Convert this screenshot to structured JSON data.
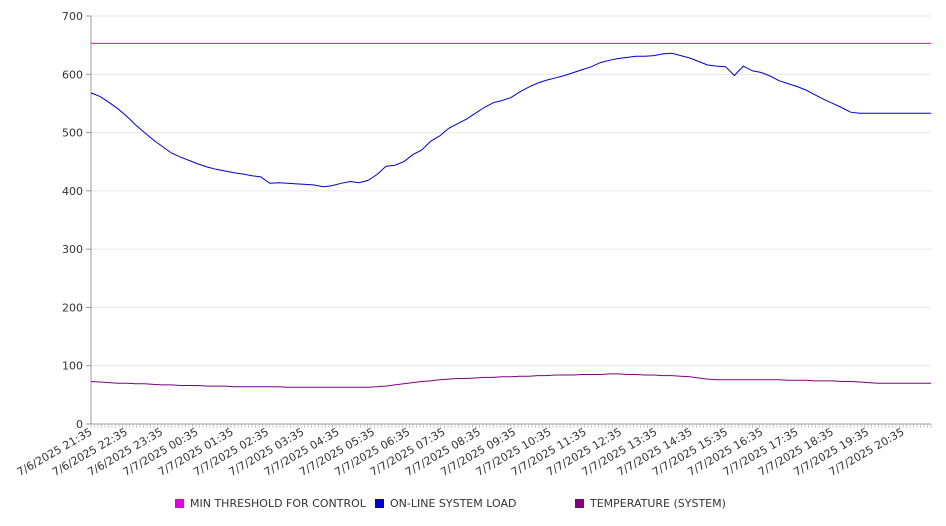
{
  "chart_data": {
    "type": "line",
    "title": "",
    "xlabel": "",
    "ylabel": "",
    "ylim": [
      0,
      700
    ],
    "yticks": [
      0,
      100,
      200,
      300,
      400,
      500,
      600,
      700
    ],
    "grid": true,
    "legend_position": "bottom",
    "x_tick_labels": [
      "7/6/2025 21:35",
      "7/6/2025 22:35",
      "7/6/2025 23:35",
      "7/7/2025 00:35",
      "7/7/2025 01:35",
      "7/7/2025 02:35",
      "7/7/2025 03:35",
      "7/7/2025 04:35",
      "7/7/2025 05:35",
      "7/7/2025 06:35",
      "7/7/2025 07:35",
      "7/7/2025 08:35",
      "7/7/2025 09:35",
      "7/7/2025 10:35",
      "7/7/2025 11:35",
      "7/7/2025 12:35",
      "7/7/2025 13:35",
      "7/7/2025 14:35",
      "7/7/2025 15:35",
      "7/7/2025 16:35",
      "7/7/2025 17:35",
      "7/7/2025 18:35",
      "7/7/2025 19:35",
      "7/7/2025 20:35"
    ],
    "x": [
      "21:35",
      "21:50",
      "22:05",
      "22:20",
      "22:35",
      "22:50",
      "23:05",
      "23:20",
      "23:35",
      "23:50",
      "00:05",
      "00:20",
      "00:35",
      "00:50",
      "01:05",
      "01:20",
      "01:35",
      "01:50",
      "02:05",
      "02:20",
      "02:35",
      "02:50",
      "03:05",
      "03:20",
      "03:35",
      "03:50",
      "04:05",
      "04:20",
      "04:35",
      "04:50",
      "05:05",
      "05:20",
      "05:35",
      "05:50",
      "06:05",
      "06:20",
      "06:35",
      "06:50",
      "07:05",
      "07:20",
      "07:35",
      "07:50",
      "08:05",
      "08:20",
      "08:35",
      "08:50",
      "09:05",
      "09:20",
      "09:35",
      "09:50",
      "10:05",
      "10:20",
      "10:35",
      "10:50",
      "11:05",
      "11:20",
      "11:35",
      "11:50",
      "12:05",
      "12:20",
      "12:35",
      "12:50",
      "13:05",
      "13:20",
      "13:35",
      "13:50",
      "14:05",
      "14:20",
      "14:35",
      "14:50",
      "15:05",
      "15:20",
      "15:35",
      "15:50",
      "16:05",
      "16:20",
      "16:35",
      "16:50",
      "17:05",
      "17:20",
      "17:35",
      "17:50",
      "18:05",
      "18:20",
      "18:35",
      "18:50",
      "19:05",
      "19:20",
      "19:35",
      "19:50",
      "20:05",
      "20:20",
      "20:35",
      "20:50",
      "21:05"
    ],
    "series": [
      {
        "name": "MIN THRESHOLD FOR CONTROL",
        "color": "#e000e0",
        "values": [
          653,
          653,
          653,
          653,
          653,
          653,
          653,
          653,
          653,
          653,
          653,
          653,
          653,
          653,
          653,
          653,
          653,
          653,
          653,
          653,
          653,
          653,
          653,
          653,
          653,
          653,
          653,
          653,
          653,
          653,
          653,
          653,
          653,
          653,
          653,
          653,
          653,
          653,
          653,
          653,
          653,
          653,
          653,
          653,
          653,
          653,
          653,
          653,
          653,
          653,
          653,
          653,
          653,
          653,
          653,
          653,
          653,
          653,
          653,
          653,
          653,
          653,
          653,
          653,
          653,
          653,
          653,
          653,
          653,
          653,
          653,
          653,
          653,
          653,
          653,
          653,
          653,
          653,
          653,
          653,
          653,
          653,
          653,
          653,
          653,
          653,
          653,
          653,
          653,
          653,
          653,
          653,
          653,
          653,
          653
        ]
      },
      {
        "name": "ON-LINE SYSTEM LOAD",
        "color": "#0000cc",
        "values": [
          568,
          562,
          552,
          541,
          528,
          513,
          500,
          487,
          476,
          465,
          458,
          452,
          446,
          441,
          437,
          434,
          431,
          429,
          426,
          424,
          413,
          414,
          413,
          412,
          411,
          410,
          407,
          409,
          413,
          416,
          414,
          418,
          428,
          442,
          444,
          450,
          462,
          470,
          485,
          494,
          507,
          515,
          523,
          533,
          543,
          551,
          555,
          560,
          570,
          578,
          585,
          590,
          594,
          598,
          603,
          608,
          613,
          620,
          624,
          627,
          629,
          631,
          631,
          632,
          635,
          636,
          632,
          628,
          622,
          616,
          614,
          613,
          598,
          614,
          606,
          603,
          597,
          589,
          584,
          579,
          573,
          565,
          557,
          550,
          543,
          535,
          533,
          533,
          533,
          533,
          533,
          533,
          533,
          533,
          533
        ]
      },
      {
        "name": "TEMPERATURE (SYSTEM)",
        "color": "#800080",
        "values": [
          73,
          72,
          71,
          70,
          70,
          69,
          69,
          68,
          67,
          67,
          66,
          66,
          66,
          65,
          65,
          65,
          64,
          64,
          64,
          64,
          64,
          64,
          63,
          63,
          63,
          63,
          63,
          63,
          63,
          63,
          63,
          63,
          64,
          65,
          67,
          69,
          71,
          73,
          74,
          76,
          77,
          78,
          78,
          79,
          80,
          80,
          81,
          81,
          82,
          82,
          83,
          83,
          84,
          84,
          84,
          85,
          85,
          85,
          86,
          86,
          85,
          85,
          84,
          84,
          83,
          83,
          82,
          81,
          79,
          77,
          76,
          76,
          76,
          76,
          76,
          76,
          76,
          76,
          75,
          75,
          75,
          74,
          74,
          74,
          73,
          73,
          72,
          71,
          70,
          70,
          70,
          70,
          70,
          70,
          70
        ]
      }
    ]
  }
}
